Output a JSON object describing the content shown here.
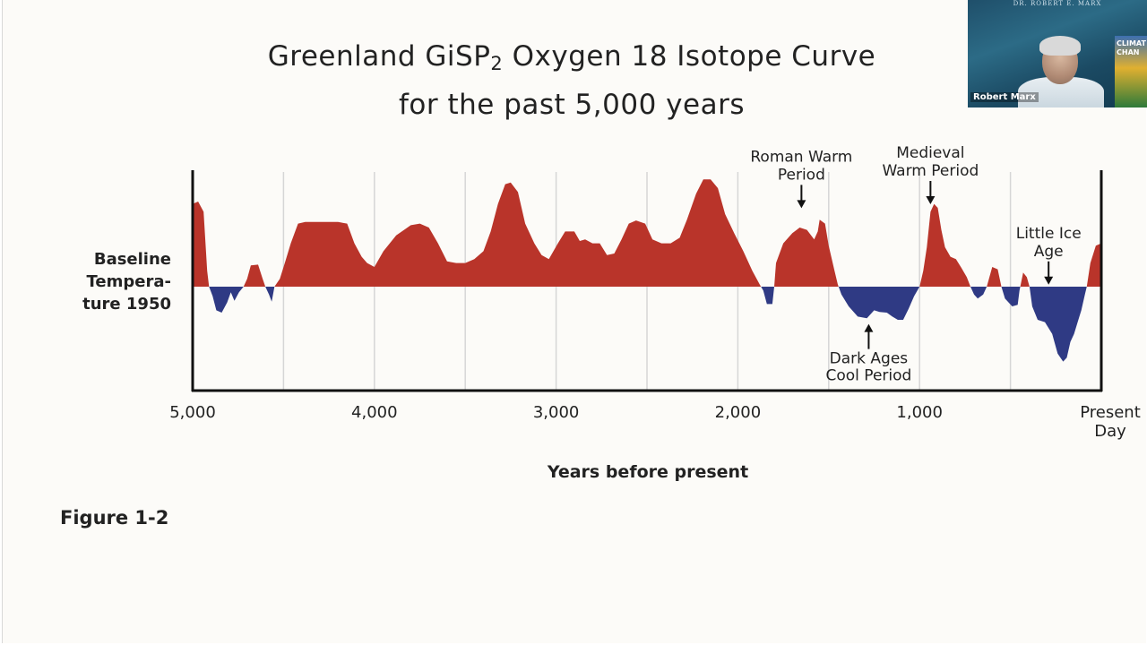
{
  "slide": {
    "title_line1_a": "Greenland GiSP",
    "title_line1_sub": "2",
    "title_line1_b": " Oxygen 18 Isotope Curve",
    "title_line2": "for the past 5,000 years",
    "figure_label": "Figure 1-2"
  },
  "chart_data": {
    "type": "area",
    "title": "Greenland GiSP2 Oxygen 18 Isotope Curve for the past 5,000 years",
    "xlabel": "Years before present",
    "ylabel": "Baseline Tempera- ture 1950",
    "ylabel_lines": [
      "Baseline",
      "Tempera-",
      "ture 1950"
    ],
    "x_reversed": true,
    "xlim": [
      5000,
      0
    ],
    "ylim": [
      -1.0,
      1.5
    ],
    "baseline": 0,
    "grid": "vertical",
    "gridlines": [
      4500,
      4000,
      3500,
      3000,
      2500,
      2000,
      1500,
      1000,
      500
    ],
    "x_ticks": [
      {
        "value": 5000,
        "label": "5,000"
      },
      {
        "value": 4000,
        "label": "4,000"
      },
      {
        "value": 3000,
        "label": "3,000"
      },
      {
        "value": 2000,
        "label": "2,000"
      },
      {
        "value": 1000,
        "label": "1,000"
      },
      {
        "value": 0,
        "label": "Present",
        "label2": "Day"
      }
    ],
    "colors": {
      "warm": "#b9342a",
      "cool": "#2f3a84",
      "axis": "#111111",
      "grid": "#d6d6d6"
    },
    "points": [
      [
        5000,
        1.05
      ],
      [
        4970,
        1.08
      ],
      [
        4940,
        0.95
      ],
      [
        4920,
        0.2
      ],
      [
        4910,
        0.0
      ],
      [
        4890,
        -0.12
      ],
      [
        4870,
        -0.3
      ],
      [
        4840,
        -0.33
      ],
      [
        4810,
        -0.2
      ],
      [
        4790,
        -0.07
      ],
      [
        4770,
        -0.18
      ],
      [
        4745,
        -0.07
      ],
      [
        4720,
        0.0
      ],
      [
        4700,
        0.1
      ],
      [
        4680,
        0.27
      ],
      [
        4640,
        0.28
      ],
      [
        4615,
        0.1
      ],
      [
        4600,
        0.0
      ],
      [
        4580,
        -0.1
      ],
      [
        4565,
        -0.19
      ],
      [
        4550,
        0.0
      ],
      [
        4520,
        0.1
      ],
      [
        4490,
        0.32
      ],
      [
        4460,
        0.55
      ],
      [
        4420,
        0.8
      ],
      [
        4380,
        0.82
      ],
      [
        4330,
        0.82
      ],
      [
        4200,
        0.82
      ],
      [
        4150,
        0.8
      ],
      [
        4110,
        0.55
      ],
      [
        4070,
        0.38
      ],
      [
        4040,
        0.3
      ],
      [
        4000,
        0.25
      ],
      [
        3950,
        0.45
      ],
      [
        3880,
        0.65
      ],
      [
        3800,
        0.78
      ],
      [
        3750,
        0.8
      ],
      [
        3700,
        0.75
      ],
      [
        3650,
        0.55
      ],
      [
        3600,
        0.32
      ],
      [
        3550,
        0.3
      ],
      [
        3500,
        0.3
      ],
      [
        3450,
        0.35
      ],
      [
        3400,
        0.45
      ],
      [
        3360,
        0.7
      ],
      [
        3320,
        1.05
      ],
      [
        3280,
        1.3
      ],
      [
        3250,
        1.32
      ],
      [
        3210,
        1.2
      ],
      [
        3170,
        0.8
      ],
      [
        3120,
        0.55
      ],
      [
        3080,
        0.4
      ],
      [
        3040,
        0.35
      ],
      [
        2990,
        0.55
      ],
      [
        2950,
        0.7
      ],
      [
        2900,
        0.7
      ],
      [
        2870,
        0.58
      ],
      [
        2840,
        0.6
      ],
      [
        2800,
        0.55
      ],
      [
        2760,
        0.55
      ],
      [
        2720,
        0.4
      ],
      [
        2680,
        0.42
      ],
      [
        2640,
        0.6
      ],
      [
        2600,
        0.8
      ],
      [
        2560,
        0.84
      ],
      [
        2510,
        0.8
      ],
      [
        2470,
        0.6
      ],
      [
        2420,
        0.55
      ],
      [
        2370,
        0.55
      ],
      [
        2320,
        0.62
      ],
      [
        2280,
        0.85
      ],
      [
        2230,
        1.18
      ],
      [
        2190,
        1.36
      ],
      [
        2150,
        1.36
      ],
      [
        2110,
        1.25
      ],
      [
        2070,
        0.92
      ],
      [
        2020,
        0.68
      ],
      [
        1970,
        0.45
      ],
      [
        1920,
        0.2
      ],
      [
        1880,
        0.03
      ],
      [
        1860,
        -0.05
      ],
      [
        1840,
        -0.22
      ],
      [
        1810,
        -0.22
      ],
      [
        1800,
        0.0
      ],
      [
        1790,
        0.3
      ],
      [
        1750,
        0.55
      ],
      [
        1700,
        0.68
      ],
      [
        1660,
        0.75
      ],
      [
        1620,
        0.72
      ],
      [
        1580,
        0.6
      ],
      [
        1560,
        0.7
      ],
      [
        1550,
        0.85
      ],
      [
        1520,
        0.8
      ],
      [
        1500,
        0.52
      ],
      [
        1470,
        0.22
      ],
      [
        1450,
        0.03
      ],
      [
        1430,
        -0.1
      ],
      [
        1390,
        -0.25
      ],
      [
        1340,
        -0.38
      ],
      [
        1290,
        -0.4
      ],
      [
        1250,
        -0.3
      ],
      [
        1220,
        -0.32
      ],
      [
        1180,
        -0.33
      ],
      [
        1150,
        -0.38
      ],
      [
        1120,
        -0.42
      ],
      [
        1090,
        -0.42
      ],
      [
        1060,
        -0.28
      ],
      [
        1030,
        -0.12
      ],
      [
        1000,
        0.0
      ],
      [
        980,
        0.2
      ],
      [
        960,
        0.5
      ],
      [
        940,
        0.95
      ],
      [
        920,
        1.05
      ],
      [
        900,
        1.0
      ],
      [
        880,
        0.72
      ],
      [
        860,
        0.5
      ],
      [
        830,
        0.38
      ],
      [
        800,
        0.35
      ],
      [
        770,
        0.24
      ],
      [
        740,
        0.12
      ],
      [
        720,
        0.0
      ],
      [
        700,
        -0.1
      ],
      [
        680,
        -0.15
      ],
      [
        650,
        -0.1
      ],
      [
        630,
        0.0
      ],
      [
        600,
        0.25
      ],
      [
        570,
        0.22
      ],
      [
        550,
        0.0
      ],
      [
        530,
        -0.15
      ],
      [
        490,
        -0.25
      ],
      [
        460,
        -0.23
      ],
      [
        450,
        -0.05
      ],
      [
        430,
        0.18
      ],
      [
        410,
        0.12
      ],
      [
        395,
        0.0
      ],
      [
        380,
        -0.25
      ],
      [
        350,
        -0.42
      ],
      [
        310,
        -0.45
      ],
      [
        270,
        -0.6
      ],
      [
        240,
        -0.85
      ],
      [
        210,
        -0.95
      ],
      [
        190,
        -0.9
      ],
      [
        170,
        -0.7
      ],
      [
        150,
        -0.6
      ],
      [
        130,
        -0.45
      ],
      [
        110,
        -0.3
      ],
      [
        90,
        -0.1
      ],
      [
        80,
        0.0
      ],
      [
        60,
        0.3
      ],
      [
        30,
        0.52
      ],
      [
        0,
        0.55
      ]
    ],
    "annotations": [
      {
        "id": "roman",
        "lines": [
          "Roman Warm",
          "Period"
        ],
        "x": 1650,
        "y": 0.95
      },
      {
        "id": "medieval",
        "lines": [
          "Medieval",
          "Warm Period"
        ],
        "x": 940,
        "y": 1.0
      },
      {
        "id": "little_ice",
        "lines": [
          "Little Ice",
          "Age"
        ],
        "x": 290,
        "y": -0.02
      },
      {
        "id": "dark_ages",
        "lines": [
          "Dark Ages",
          "Cool Period"
        ],
        "x": 1280,
        "y": -0.45,
        "below": true
      }
    ]
  },
  "webcam": {
    "participant_name": "Robert Marx",
    "banner_text": "DR. ROBERT E. MARX",
    "book_text_1": "CLIMAT",
    "book_text_2": "CHAN"
  }
}
